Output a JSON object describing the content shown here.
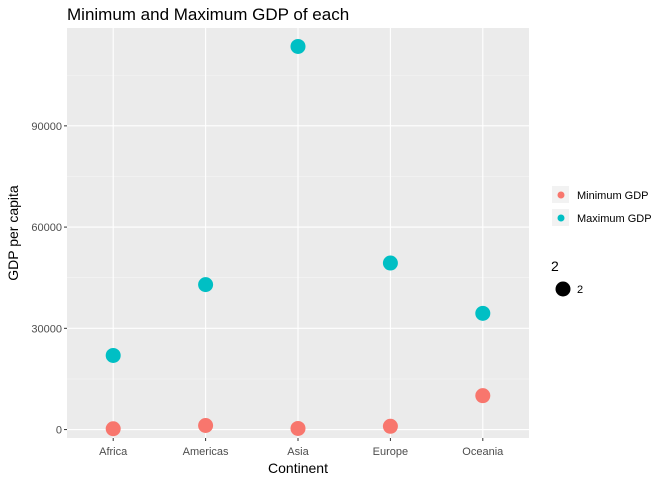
{
  "chart_data": {
    "type": "scatter",
    "title": "Minimum and Maximum GDP of each",
    "xlabel": "Continent",
    "ylabel": "GDP per capita",
    "categories": [
      "Africa",
      "Americas",
      "Asia",
      "Europe",
      "Oceania"
    ],
    "ylim": [
      -2500,
      119000
    ],
    "yticks": [
      0,
      30000,
      60000,
      90000
    ],
    "ytick_labels": [
      "0",
      "30000",
      "60000",
      "90000"
    ],
    "grid": true,
    "legend_position": "right",
    "series": [
      {
        "name": "Minimum GDP",
        "color": "#F8766D",
        "values": [
          241,
          1202,
          331,
          974,
          10040
        ]
      },
      {
        "name": "Maximum GDP",
        "color": "#00BFC4",
        "values": [
          21951,
          42952,
          113523,
          49357,
          34435
        ]
      }
    ],
    "size_legend": {
      "title": "2",
      "label": "2"
    }
  }
}
